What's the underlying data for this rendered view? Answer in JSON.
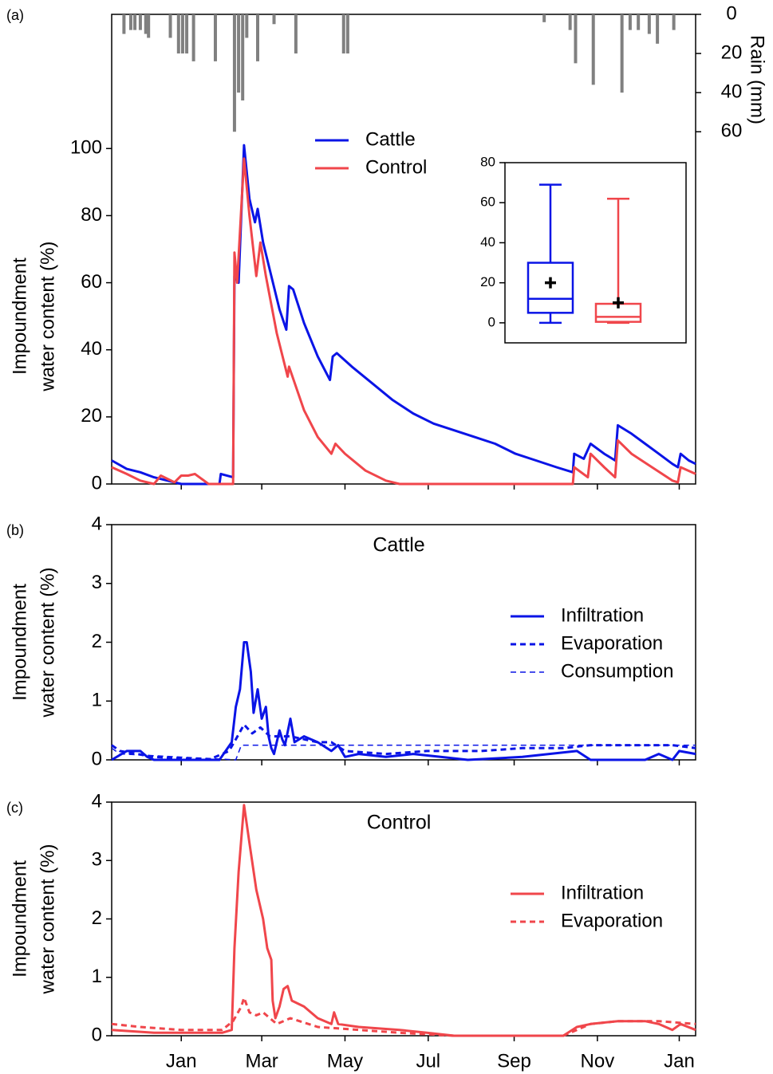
{
  "chart_data": [
    {
      "type": "line",
      "panel_label": "(a)",
      "ylabel": [
        "Impoundment",
        "water content (%)"
      ],
      "y2label": "Rain (mm)",
      "xlim": [
        -51,
        377
      ],
      "ylim": [
        0,
        140
      ],
      "yticks": [
        0,
        20,
        40,
        60,
        80,
        100
      ],
      "y2lim": [
        240,
        0
      ],
      "y2ticks": [
        0,
        20,
        40,
        60
      ],
      "legend": "upper center",
      "series": [
        {
          "type": "bar",
          "axis": "y2",
          "color": "#808080",
          "x": [
            -42,
            -37,
            -34,
            -30,
            -26,
            -24,
            -8,
            -2,
            1,
            4,
            9,
            25,
            39,
            42,
            45,
            48,
            56,
            68,
            84,
            119,
            122,
            266,
            285,
            289,
            302,
            323,
            329,
            335,
            343,
            349,
            361
          ],
          "values": [
            10,
            8,
            8,
            8,
            10,
            12,
            12,
            20,
            20,
            20,
            24,
            24,
            60,
            40,
            44,
            12,
            24,
            5,
            20,
            20,
            20,
            4,
            8,
            25,
            36,
            40,
            8,
            8,
            10,
            15,
            8
          ]
        },
        {
          "name": "Cattle",
          "color": "#0a14e6",
          "line_style": "solid",
          "x": [
            -51,
            -40,
            -30,
            -20,
            -10,
            0,
            10,
            20,
            28,
            29,
            38,
            39,
            42,
            46,
            50,
            54,
            56,
            60,
            66,
            72,
            77,
            79,
            82,
            90,
            100,
            109,
            111,
            114,
            125,
            140,
            155,
            170,
            185,
            200,
            215,
            230,
            245,
            260,
            275,
            287,
            288,
            295,
            300,
            310,
            318,
            320,
            330,
            340,
            350,
            360,
            364,
            366,
            372,
            377
          ],
          "values": [
            7,
            4.5,
            3.5,
            2,
            1,
            0,
            0,
            0,
            0,
            3,
            2,
            62,
            60,
            101,
            85,
            78,
            82,
            72,
            62,
            52,
            46,
            59,
            58,
            48,
            38,
            31,
            38,
            39,
            35,
            30,
            25,
            21,
            18,
            16,
            14,
            12,
            9,
            7,
            5,
            3.5,
            9,
            7.5,
            12,
            9,
            7,
            17.5,
            15,
            12,
            9,
            6,
            5,
            9,
            7,
            6
          ]
        },
        {
          "name": "Control",
          "color": "#f0464b",
          "line_style": "solid",
          "x": [
            -51,
            -40,
            -30,
            -20,
            -15,
            -5,
            0,
            5,
            10,
            20,
            30,
            38,
            39,
            41,
            46,
            50,
            55,
            58,
            62,
            70,
            78,
            79,
            90,
            100,
            110,
            113,
            120,
            135,
            150,
            160,
            200,
            250,
            287,
            288,
            298,
            300,
            310,
            318,
            320,
            330,
            345,
            360,
            364,
            366,
            377
          ],
          "values": [
            5,
            3,
            1,
            0,
            2.5,
            0.5,
            2.5,
            2.5,
            3,
            0,
            0,
            0,
            69,
            60,
            97,
            80,
            62,
            72,
            62,
            45,
            32,
            35,
            22,
            14,
            9,
            12,
            9,
            4,
            1,
            0,
            0,
            0,
            0,
            5,
            2,
            9,
            5,
            2,
            13,
            9,
            5,
            1,
            0.5,
            5,
            3
          ]
        }
      ]
    },
    {
      "type": "box",
      "ylim": [
        -10,
        80
      ],
      "yticks": [
        0,
        20,
        40,
        60,
        80
      ],
      "series": [
        {
          "color": "#0a14e6",
          "min": 0,
          "q1": 5,
          "median": 12,
          "q3": 30,
          "max": 69,
          "mean": 20
        },
        {
          "color": "#f0464b",
          "min": 0,
          "q1": 0.5,
          "median": 3,
          "q3": 9.5,
          "max": 62,
          "mean": 10
        }
      ]
    },
    {
      "type": "line",
      "panel_label": "(b)",
      "title": "Cattle",
      "ylabel": [
        "Impoundment",
        "water content (%)"
      ],
      "xlim": [
        -51,
        377
      ],
      "ylim": [
        0,
        4
      ],
      "yticks": [
        0,
        1,
        2,
        3,
        4
      ],
      "legend": "center right",
      "series": [
        {
          "name": "Infiltration",
          "color": "#0a14e6",
          "line_style": "solid",
          "x": [
            -51,
            -40,
            -30,
            -25,
            -20,
            28,
            37,
            40,
            43,
            46,
            48,
            51,
            53,
            56,
            59,
            62,
            64,
            66,
            68,
            70,
            72,
            74,
            76,
            80,
            83,
            90,
            100,
            110,
            115,
            120,
            130,
            150,
            170,
            190,
            210,
            250,
            290,
            300,
            340,
            350,
            360,
            365,
            377
          ],
          "values": [
            0,
            0.15,
            0.15,
            0.05,
            0,
            0,
            0.3,
            0.9,
            1.2,
            2.0,
            2.0,
            1.5,
            0.8,
            1.2,
            0.7,
            0.9,
            0.4,
            0.2,
            0.1,
            0.3,
            0.5,
            0.35,
            0.25,
            0.7,
            0.3,
            0.4,
            0.3,
            0.15,
            0.25,
            0.05,
            0.1,
            0.05,
            0.1,
            0.05,
            0,
            0.05,
            0.15,
            0,
            0,
            0.1,
            0,
            0.15,
            0.1
          ]
        },
        {
          "name": "Evaporation",
          "color": "#0a14e6",
          "line_style": "dotted",
          "x": [
            -51,
            -45,
            -20,
            20,
            35,
            40,
            46,
            52,
            58,
            65,
            80,
            100,
            110,
            120,
            150,
            180,
            220,
            250,
            280,
            300,
            330,
            360,
            377
          ],
          "values": [
            0.25,
            0.15,
            0.05,
            0,
            0.15,
            0.35,
            0.6,
            0.45,
            0.55,
            0.4,
            0.4,
            0.3,
            0.3,
            0.15,
            0.1,
            0.15,
            0.15,
            0.2,
            0.2,
            0.25,
            0.25,
            0.25,
            0.2
          ]
        },
        {
          "name": "Consumption",
          "color": "#0a14e6",
          "line_style": "dashed",
          "x": [
            -51,
            -45,
            40,
            44,
            377
          ],
          "values": [
            0.2,
            0.1,
            0,
            0.25,
            0.25
          ]
        }
      ]
    },
    {
      "type": "line",
      "panel_label": "(c)",
      "title": "Control",
      "ylabel": [
        "Impoundment",
        "water content (%)"
      ],
      "xlim": [
        -51,
        377
      ],
      "ylim": [
        0,
        4
      ],
      "yticks": [
        0,
        1,
        2,
        3,
        4
      ],
      "legend": "center right",
      "xticks": [
        {
          "value": 0,
          "label": "Jan"
        },
        {
          "value": 59,
          "label": "Mar"
        },
        {
          "value": 120,
          "label": "May"
        },
        {
          "value": 181,
          "label": "Jul"
        },
        {
          "value": 244,
          "label": "Sep"
        },
        {
          "value": 305,
          "label": "Nov"
        },
        {
          "value": 365,
          "label": "Jan"
        }
      ],
      "series": [
        {
          "name": "Infiltration",
          "color": "#f0464b",
          "line_style": "solid",
          "x": [
            -51,
            -20,
            30,
            37,
            39,
            42,
            46,
            50,
            55,
            60,
            63,
            66,
            67,
            69,
            72,
            75,
            78,
            81,
            90,
            100,
            110,
            112,
            115,
            130,
            160,
            180,
            200,
            280,
            290,
            300,
            320,
            340,
            350,
            360,
            366,
            377
          ],
          "values": [
            0.1,
            0.05,
            0.05,
            0.1,
            1.5,
            2.8,
            3.95,
            3.3,
            2.5,
            2.0,
            1.5,
            1.3,
            0.6,
            0.3,
            0.5,
            0.8,
            0.85,
            0.6,
            0.5,
            0.3,
            0.2,
            0.4,
            0.2,
            0.15,
            0.1,
            0.05,
            0,
            0,
            0.15,
            0.2,
            0.25,
            0.25,
            0.2,
            0.1,
            0.2,
            0.1
          ]
        },
        {
          "name": "Evaporation",
          "color": "#f0464b",
          "line_style": "dotted",
          "x": [
            -51,
            -30,
            0,
            30,
            38,
            44,
            46,
            50,
            55,
            60,
            65,
            70,
            80,
            100,
            130,
            160,
            200,
            280,
            290,
            300,
            320,
            350,
            377
          ],
          "values": [
            0.2,
            0.15,
            0.1,
            0.1,
            0.25,
            0.5,
            0.65,
            0.4,
            0.35,
            0.4,
            0.3,
            0.2,
            0.3,
            0.15,
            0.1,
            0.05,
            0,
            0,
            0.1,
            0.2,
            0.25,
            0.25,
            0.2
          ]
        }
      ]
    }
  ]
}
